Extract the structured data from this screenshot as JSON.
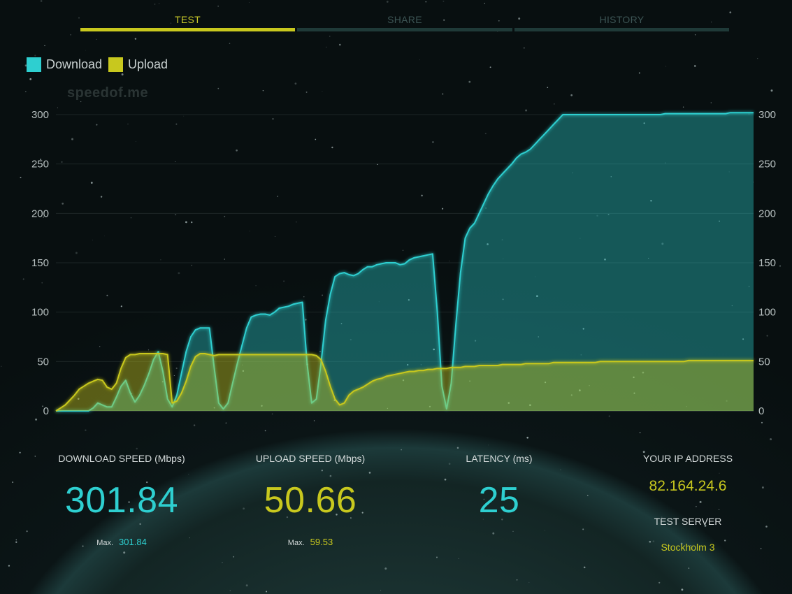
{
  "tabs": [
    {
      "label": "TEST",
      "active": true
    },
    {
      "label": "SHARE",
      "active": false
    },
    {
      "label": "HISTORY",
      "active": false
    }
  ],
  "legend": [
    {
      "label": "Download",
      "color": "#2ecfd0"
    },
    {
      "label": "Upload",
      "color": "#c8c81e"
    }
  ],
  "watermark": "speedof.me",
  "stats": {
    "download": {
      "title": "DOWNLOAD SPEED (Mbps)",
      "value": "301.84",
      "max_label": "Max.",
      "max_value": "301.84",
      "color": "#2ecfd0"
    },
    "upload": {
      "title": "UPLOAD SPEED (Mbps)",
      "value": "50.66",
      "max_label": "Max.",
      "max_value": "59.53",
      "color": "#c8c81e"
    },
    "latency": {
      "title": "LATENCY (ms)",
      "value": "25",
      "color": "#2ecfd0"
    },
    "ip": {
      "title": "YOUR IP ADDRESS",
      "value": "82.164.24.6",
      "color": "#c8c81e"
    },
    "server": {
      "title": "TEST SERVER",
      "value": "Stockholm 3",
      "color": "#c8c81e"
    }
  },
  "chart_data": {
    "type": "area",
    "title": "",
    "xlabel": "",
    "ylabel": "Mbps",
    "ylim": [
      0,
      300
    ],
    "yticks": [
      0,
      50,
      100,
      150,
      200,
      250,
      300
    ],
    "x": [
      0,
      1,
      2,
      3,
      4,
      5,
      6,
      7,
      8,
      9,
      10,
      11,
      12,
      13,
      14,
      15,
      16,
      17,
      18,
      19,
      20,
      21,
      22,
      23,
      24,
      25,
      26,
      27,
      28,
      29,
      30,
      31,
      32,
      33,
      34,
      35,
      36,
      37,
      38,
      39,
      40,
      41,
      42,
      43,
      44,
      45,
      46,
      47,
      48,
      49,
      50,
      51,
      52,
      53,
      54,
      55,
      56,
      57,
      58,
      59,
      60,
      61,
      62,
      63,
      64,
      65,
      66,
      67,
      68,
      69,
      70,
      71,
      72,
      73,
      74,
      75,
      76,
      77,
      78,
      79,
      80,
      81,
      82,
      83,
      84,
      85,
      86,
      87,
      88,
      89,
      90,
      91,
      92,
      93,
      94,
      95,
      96,
      97,
      98,
      99,
      100,
      101,
      102,
      103,
      104,
      105,
      106,
      107,
      108,
      109,
      110,
      111,
      112,
      113,
      114,
      115,
      116,
      117,
      118,
      119,
      120,
      121,
      122,
      123,
      124,
      125,
      126,
      127,
      128,
      129,
      130,
      131,
      132,
      133,
      134,
      135,
      136,
      137,
      138,
      139,
      140,
      141,
      142,
      143,
      144,
      145,
      146,
      147,
      148,
      149,
      150
    ],
    "series": [
      {
        "name": "Download",
        "color": "#2ecfd0",
        "values": [
          0,
          0,
          0,
          0,
          0,
          0,
          0,
          0,
          3,
          8,
          6,
          4,
          4,
          14,
          25,
          31,
          18,
          9,
          16,
          26,
          38,
          52,
          60,
          40,
          12,
          4,
          16,
          38,
          60,
          75,
          82,
          84,
          84,
          84,
          45,
          8,
          2,
          8,
          28,
          48,
          66,
          84,
          95,
          97,
          98,
          98,
          97,
          100,
          104,
          105,
          106,
          108,
          109,
          110,
          48,
          8,
          12,
          48,
          92,
          118,
          136,
          139,
          140,
          138,
          137,
          139,
          143,
          146,
          146,
          148,
          149,
          150,
          150,
          150,
          148,
          149,
          153,
          155,
          156,
          157,
          158,
          159,
          100,
          25,
          2,
          28,
          88,
          140,
          175,
          185,
          190,
          200,
          210,
          220,
          228,
          235,
          240,
          245,
          250,
          256,
          260,
          262,
          265,
          270,
          275,
          280,
          285,
          290,
          295,
          300,
          300,
          300,
          300,
          300,
          300,
          300,
          300,
          300,
          300,
          300,
          300,
          300,
          300,
          300,
          300,
          300,
          300,
          300,
          300,
          300,
          300,
          301,
          301,
          301,
          301,
          301,
          301,
          301,
          301,
          301,
          301,
          301,
          301,
          301,
          301,
          302,
          302,
          302,
          302,
          302,
          302
        ]
      },
      {
        "name": "Upload",
        "color": "#c8c81e",
        "values": [
          0,
          3,
          6,
          11,
          16,
          22,
          25,
          28,
          30,
          32,
          31,
          24,
          22,
          28,
          43,
          54,
          57,
          57,
          58,
          58,
          58,
          58,
          58,
          58,
          57,
          8,
          10,
          18,
          30,
          45,
          55,
          58,
          58,
          57,
          56,
          57,
          57,
          57,
          57,
          57,
          57,
          57,
          57,
          57,
          57,
          57,
          57,
          57,
          57,
          57,
          57,
          57,
          57,
          57,
          57,
          57,
          56,
          52,
          40,
          25,
          12,
          6,
          8,
          16,
          20,
          22,
          24,
          27,
          30,
          32,
          33,
          35,
          36,
          37,
          38,
          39,
          40,
          40,
          41,
          41,
          42,
          42,
          43,
          43,
          43,
          44,
          44,
          44,
          45,
          45,
          45,
          46,
          46,
          46,
          46,
          46,
          47,
          47,
          47,
          47,
          47,
          48,
          48,
          48,
          48,
          48,
          48,
          49,
          49,
          49,
          49,
          49,
          49,
          49,
          49,
          49,
          49,
          50,
          50,
          50,
          50,
          50,
          50,
          50,
          50,
          50,
          50,
          50,
          50,
          50,
          50,
          50,
          50,
          50,
          50,
          50,
          51,
          51,
          51,
          51,
          51,
          51,
          51,
          51,
          51,
          51,
          51,
          51,
          51,
          51,
          51
        ]
      }
    ]
  }
}
